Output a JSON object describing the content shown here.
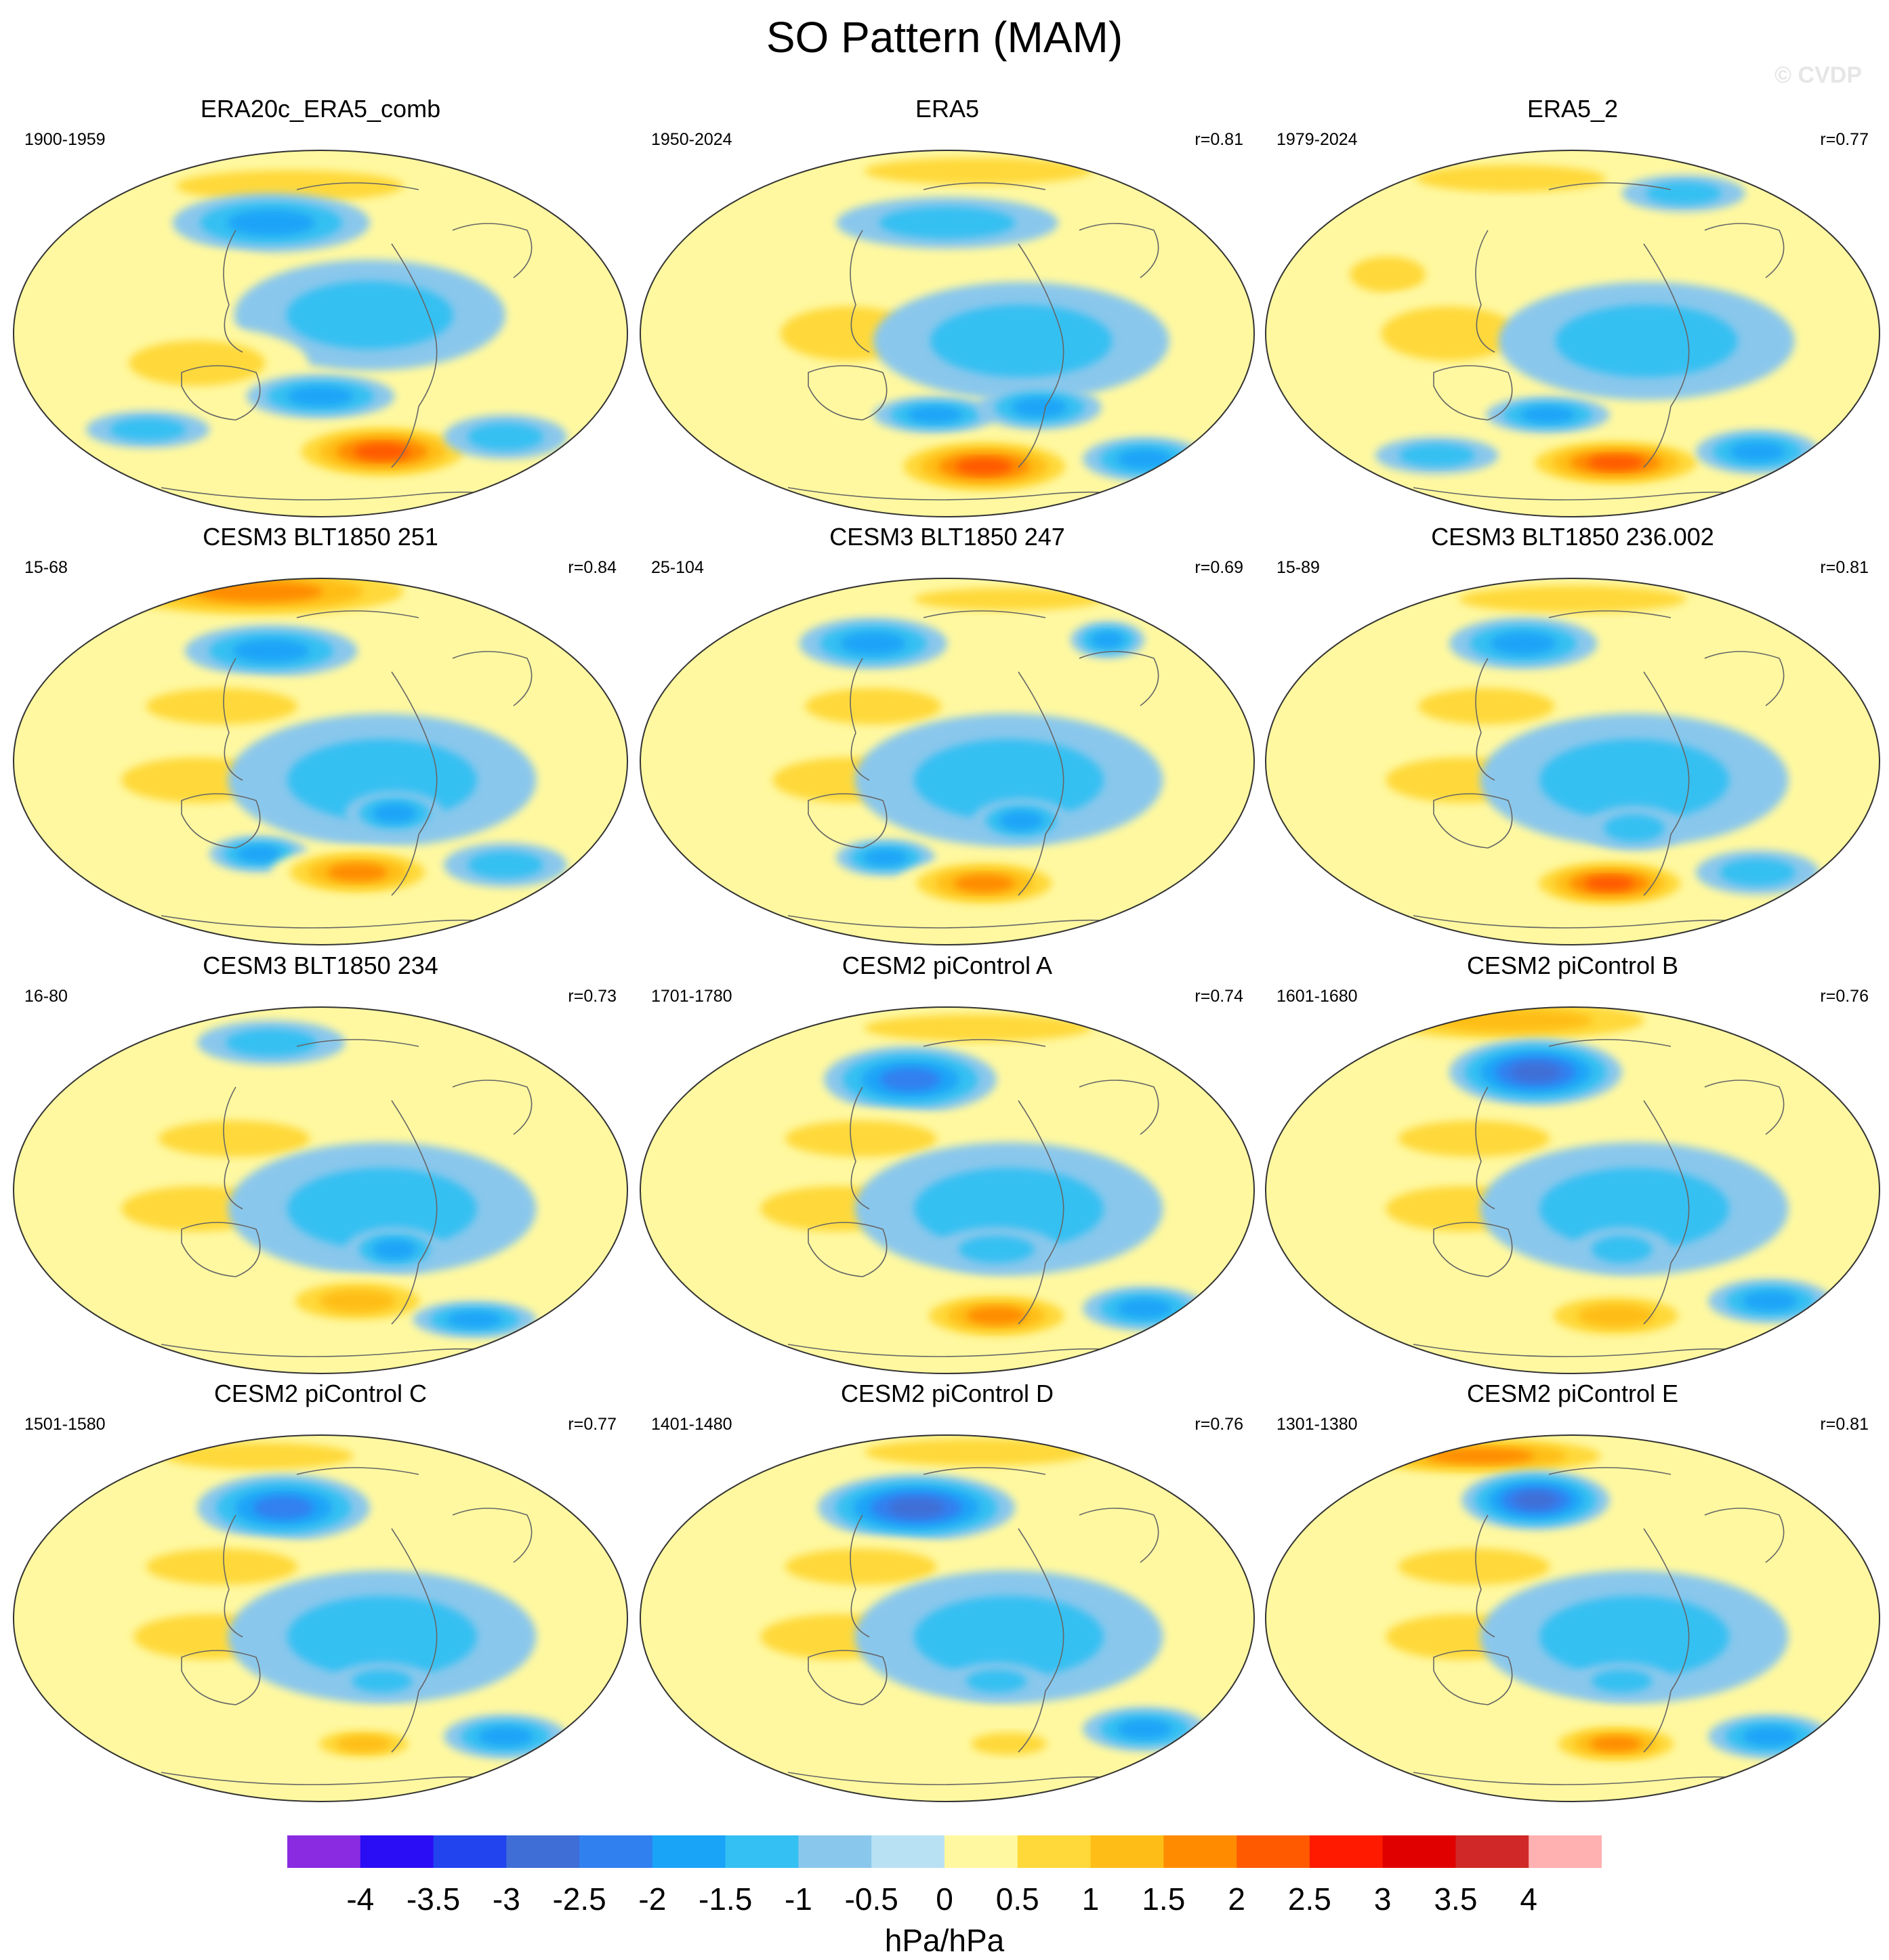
{
  "title": "SO Pattern (MAM)",
  "watermark": "© CVDP",
  "panels": [
    {
      "title": "ERA20c_ERA5_comb",
      "period": "1900-1959",
      "r": "",
      "blobs": [
        [
          0.45,
          0.1,
          0.3,
          0.07,
          1.0
        ],
        [
          0.42,
          0.2,
          0.16,
          0.08,
          -1.5
        ],
        [
          0.32,
          0.34,
          0.12,
          0.06,
          0.6
        ],
        [
          0.58,
          0.45,
          0.22,
          0.15,
          -1.0
        ],
        [
          0.3,
          0.58,
          0.18,
          0.1,
          0.8
        ],
        [
          0.5,
          0.67,
          0.12,
          0.06,
          -1.5
        ],
        [
          0.6,
          0.82,
          0.16,
          0.08,
          2.5
        ],
        [
          0.22,
          0.76,
          0.1,
          0.05,
          -1.0
        ],
        [
          0.8,
          0.78,
          0.1,
          0.06,
          -1.2
        ]
      ]
    },
    {
      "title": "ERA5",
      "period": "1950-2024",
      "r": "r=0.81",
      "blobs": [
        [
          0.55,
          0.06,
          0.3,
          0.06,
          1.0
        ],
        [
          0.5,
          0.2,
          0.18,
          0.07,
          -0.8
        ],
        [
          0.22,
          0.35,
          0.12,
          0.08,
          0.6
        ],
        [
          0.34,
          0.5,
          0.18,
          0.12,
          1.0
        ],
        [
          0.62,
          0.52,
          0.24,
          0.16,
          -0.8
        ],
        [
          0.48,
          0.72,
          0.1,
          0.05,
          -1.5
        ],
        [
          0.65,
          0.7,
          0.1,
          0.06,
          -1.5
        ],
        [
          0.56,
          0.86,
          0.16,
          0.08,
          2.5
        ],
        [
          0.82,
          0.84,
          0.1,
          0.06,
          -1.5
        ]
      ]
    },
    {
      "title": "ERA5_2",
      "period": "1979-2024",
      "r": "r=0.77",
      "blobs": [
        [
          0.4,
          0.08,
          0.25,
          0.06,
          1.0
        ],
        [
          0.68,
          0.12,
          0.1,
          0.05,
          -1.0
        ],
        [
          0.2,
          0.34,
          0.1,
          0.08,
          0.8
        ],
        [
          0.3,
          0.5,
          0.18,
          0.12,
          1.0
        ],
        [
          0.62,
          0.52,
          0.24,
          0.16,
          -0.8
        ],
        [
          0.46,
          0.72,
          0.1,
          0.05,
          -1.5
        ],
        [
          0.28,
          0.83,
          0.1,
          0.05,
          -1.2
        ],
        [
          0.57,
          0.85,
          0.16,
          0.07,
          2.5
        ],
        [
          0.8,
          0.82,
          0.1,
          0.06,
          -1.5
        ]
      ]
    },
    {
      "title": "CESM3 BLT1850 251",
      "period": "15-68",
      "r": "r=0.84",
      "blobs": [
        [
          0.4,
          0.04,
          0.3,
          0.08,
          2.0
        ],
        [
          0.42,
          0.2,
          0.14,
          0.07,
          -1.5
        ],
        [
          0.34,
          0.35,
          0.2,
          0.08,
          1.0
        ],
        [
          0.3,
          0.55,
          0.2,
          0.1,
          1.0
        ],
        [
          0.6,
          0.55,
          0.25,
          0.18,
          -0.8
        ],
        [
          0.62,
          0.64,
          0.08,
          0.06,
          -1.5
        ],
        [
          0.4,
          0.75,
          0.08,
          0.05,
          -1.5
        ],
        [
          0.56,
          0.8,
          0.14,
          0.07,
          2.0
        ],
        [
          0.8,
          0.78,
          0.1,
          0.06,
          -0.8
        ]
      ]
    },
    {
      "title": "CESM3 BLT1850 247",
      "period": "25-104",
      "r": "r=0.69",
      "blobs": [
        [
          0.6,
          0.06,
          0.25,
          0.05,
          1.0
        ],
        [
          0.38,
          0.18,
          0.12,
          0.07,
          -1.5
        ],
        [
          0.76,
          0.17,
          0.06,
          0.05,
          -1.5
        ],
        [
          0.38,
          0.35,
          0.18,
          0.08,
          1.0
        ],
        [
          0.34,
          0.55,
          0.2,
          0.1,
          1.0
        ],
        [
          0.6,
          0.55,
          0.25,
          0.18,
          -0.8
        ],
        [
          0.62,
          0.66,
          0.08,
          0.06,
          -1.5
        ],
        [
          0.4,
          0.76,
          0.08,
          0.05,
          -1.5
        ],
        [
          0.56,
          0.83,
          0.14,
          0.07,
          2.0
        ]
      ]
    },
    {
      "title": "CESM3 BLT1850 236.002",
      "period": "15-89",
      "r": "r=0.81",
      "blobs": [
        [
          0.5,
          0.06,
          0.3,
          0.06,
          1.0
        ],
        [
          0.42,
          0.18,
          0.12,
          0.07,
          -1.5
        ],
        [
          0.36,
          0.35,
          0.18,
          0.08,
          1.0
        ],
        [
          0.32,
          0.55,
          0.2,
          0.1,
          1.0
        ],
        [
          0.6,
          0.55,
          0.25,
          0.18,
          -0.8
        ],
        [
          0.6,
          0.68,
          0.08,
          0.06,
          -1.2
        ],
        [
          0.56,
          0.83,
          0.14,
          0.07,
          2.5
        ],
        [
          0.8,
          0.8,
          0.1,
          0.06,
          -1.2
        ]
      ]
    },
    {
      "title": "CESM3 BLT1850 234",
      "period": "16-80",
      "r": "r=0.73",
      "blobs": [
        [
          0.42,
          0.1,
          0.12,
          0.06,
          -0.8
        ],
        [
          0.36,
          0.36,
          0.2,
          0.08,
          1.0
        ],
        [
          0.3,
          0.55,
          0.2,
          0.1,
          1.0
        ],
        [
          0.6,
          0.55,
          0.25,
          0.18,
          -0.8
        ],
        [
          0.62,
          0.66,
          0.08,
          0.06,
          -1.5
        ],
        [
          0.56,
          0.8,
          0.14,
          0.07,
          1.5
        ],
        [
          0.75,
          0.85,
          0.1,
          0.05,
          -1.5
        ]
      ]
    },
    {
      "title": "CESM2 piControl A",
      "period": "1701-1780",
      "r": "r=0.74",
      "blobs": [
        [
          0.55,
          0.06,
          0.3,
          0.06,
          0.8
        ],
        [
          0.44,
          0.2,
          0.14,
          0.09,
          -2.0
        ],
        [
          0.36,
          0.36,
          0.2,
          0.08,
          1.0
        ],
        [
          0.32,
          0.55,
          0.2,
          0.1,
          1.0
        ],
        [
          0.6,
          0.55,
          0.25,
          0.18,
          -0.8
        ],
        [
          0.58,
          0.66,
          0.1,
          0.06,
          -1.2
        ],
        [
          0.58,
          0.84,
          0.14,
          0.07,
          2.0
        ],
        [
          0.82,
          0.82,
          0.1,
          0.06,
          -1.5
        ]
      ]
    },
    {
      "title": "CESM2 piControl B",
      "period": "1601-1680",
      "r": "r=0.76",
      "blobs": [
        [
          0.4,
          0.04,
          0.3,
          0.07,
          1.5
        ],
        [
          0.44,
          0.18,
          0.14,
          0.09,
          -2.5
        ],
        [
          0.34,
          0.36,
          0.2,
          0.08,
          1.0
        ],
        [
          0.32,
          0.55,
          0.2,
          0.1,
          1.0
        ],
        [
          0.6,
          0.55,
          0.25,
          0.18,
          -0.8
        ],
        [
          0.58,
          0.66,
          0.08,
          0.06,
          -1.2
        ],
        [
          0.57,
          0.84,
          0.14,
          0.07,
          1.5
        ],
        [
          0.82,
          0.8,
          0.1,
          0.06,
          -1.5
        ]
      ]
    },
    {
      "title": "CESM2 piControl C",
      "period": "1501-1580",
      "r": "r=0.77",
      "blobs": [
        [
          0.4,
          0.06,
          0.25,
          0.06,
          1.0
        ],
        [
          0.44,
          0.2,
          0.14,
          0.09,
          -2.0
        ],
        [
          0.34,
          0.36,
          0.2,
          0.08,
          1.0
        ],
        [
          0.32,
          0.55,
          0.2,
          0.1,
          1.0
        ],
        [
          0.6,
          0.55,
          0.25,
          0.18,
          -0.8
        ],
        [
          0.6,
          0.67,
          0.08,
          0.05,
          -1.2
        ],
        [
          0.57,
          0.84,
          0.1,
          0.05,
          1.5
        ],
        [
          0.8,
          0.82,
          0.1,
          0.06,
          -1.5
        ]
      ]
    },
    {
      "title": "CESM2 piControl D",
      "period": "1401-1480",
      "r": "r=0.76",
      "blobs": [
        [
          0.55,
          0.05,
          0.3,
          0.06,
          1.0
        ],
        [
          0.45,
          0.2,
          0.16,
          0.09,
          -2.5
        ],
        [
          0.36,
          0.36,
          0.2,
          0.08,
          1.0
        ],
        [
          0.32,
          0.55,
          0.2,
          0.1,
          1.0
        ],
        [
          0.6,
          0.55,
          0.25,
          0.18,
          -0.8
        ],
        [
          0.58,
          0.67,
          0.08,
          0.05,
          -1.2
        ],
        [
          0.6,
          0.84,
          0.1,
          0.05,
          1.0
        ],
        [
          0.82,
          0.8,
          0.1,
          0.06,
          -1.5
        ]
      ]
    },
    {
      "title": "CESM2 piControl E",
      "period": "1301-1380",
      "r": "r=0.81",
      "blobs": [
        [
          0.35,
          0.06,
          0.25,
          0.06,
          2.0
        ],
        [
          0.44,
          0.18,
          0.12,
          0.08,
          -2.5
        ],
        [
          0.34,
          0.36,
          0.2,
          0.08,
          1.0
        ],
        [
          0.32,
          0.55,
          0.2,
          0.1,
          1.0
        ],
        [
          0.6,
          0.55,
          0.25,
          0.18,
          -0.8
        ],
        [
          0.58,
          0.67,
          0.08,
          0.05,
          -1.2
        ],
        [
          0.57,
          0.84,
          0.12,
          0.06,
          2.0
        ],
        [
          0.82,
          0.82,
          0.1,
          0.06,
          -1.5
        ]
      ]
    }
  ],
  "colorbar": {
    "ticks": [
      "-4",
      "-3.5",
      "-3",
      "-2.5",
      "-2",
      "-1.5",
      "-1",
      "-0.5",
      "0",
      "0.5",
      "1",
      "1.5",
      "2",
      "2.5",
      "3",
      "3.5",
      "4"
    ],
    "colors": [
      "#8a2be2",
      "#2a0cf5",
      "#2244ee",
      "#3f6ed6",
      "#3080f0",
      "#1aa4f8",
      "#34c0f2",
      "#8ac7ec",
      "#b8e2f4",
      "#fff8a0",
      "#ffd93a",
      "#ffbe17",
      "#ff8c00",
      "#ff5a00",
      "#ff1a00",
      "#e00000",
      "#d02828",
      "#ffb0b0"
    ],
    "units": "hPa/hPa"
  }
}
